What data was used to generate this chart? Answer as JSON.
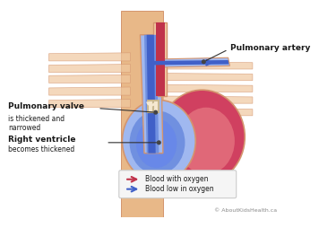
{
  "bg_color": "#ffffff",
  "skin_color": "#f0c8a0",
  "skin_dark": "#e8b888",
  "skin_outline": "#d4956e",
  "red_blood": "#c0324a",
  "red_dark": "#a02030",
  "blue_blood": "#4060c8",
  "blue_mid": "#5078d8",
  "blue_light": "#7090e0",
  "blue_pale": "#a0b8f0",
  "heart_muscle": "#d04060",
  "heart_light": "#e06878",
  "valve_cream": "#f5e8d0",
  "legend_box": "#f0f0f0",
  "text_color": "#1a1a1a",
  "label_line_color": "#333333",
  "copyright_color": "#888888",
  "title_pulm_artery": "Pulmonary artery",
  "label_pulm_valve": "Pulmonary valve",
  "label_pulm_valve_sub": "is thickened and\nnarrowed",
  "label_right_vent": "Right ventricle",
  "label_right_vent_sub": "becomes thickened",
  "legend_red": "Blood with oxygen",
  "legend_blue": "Blood low in oxygen",
  "copyright": "© AboutKidsHealth.ca"
}
